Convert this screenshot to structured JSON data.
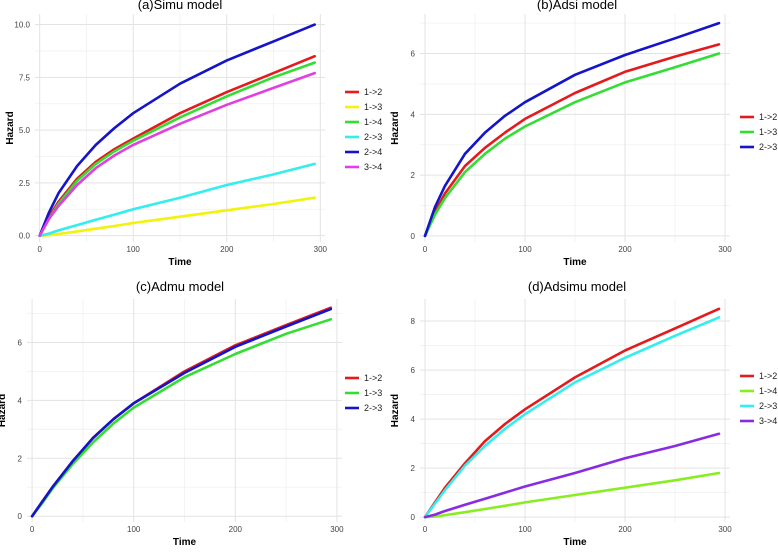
{
  "chart_data": [
    {
      "type": "line",
      "title": "(a)Simu model",
      "xlabel": "Time",
      "ylabel": "Hazard",
      "xlim": [
        -5,
        305
      ],
      "ylim": [
        -0.3,
        10.5
      ],
      "xticks": [
        0,
        100,
        200,
        300
      ],
      "yticks": [
        0.0,
        2.5,
        5.0,
        7.5,
        10.0
      ],
      "ytick_labels": [
        "0.0",
        "2.5",
        "5.0",
        "7.5",
        "10.0"
      ],
      "legend_position": "right",
      "series": [
        {
          "name": "1->2",
          "color": "#e41a1c",
          "x": [
            0,
            10,
            20,
            40,
            60,
            80,
            100,
            150,
            200,
            250,
            294
          ],
          "values": [
            0,
            0.9,
            1.6,
            2.7,
            3.5,
            4.1,
            4.6,
            5.8,
            6.8,
            7.7,
            8.5
          ]
        },
        {
          "name": "1->3",
          "color": "#f2f20a",
          "x": [
            0,
            10,
            20,
            40,
            60,
            80,
            100,
            150,
            200,
            250,
            294
          ],
          "values": [
            0,
            0.02,
            0.08,
            0.2,
            0.33,
            0.46,
            0.6,
            0.9,
            1.2,
            1.5,
            1.8
          ]
        },
        {
          "name": "1->4",
          "color": "#33dd33",
          "x": [
            0,
            10,
            20,
            40,
            60,
            80,
            100,
            150,
            200,
            250,
            294
          ],
          "values": [
            0,
            0.8,
            1.5,
            2.6,
            3.4,
            4.0,
            4.5,
            5.6,
            6.6,
            7.5,
            8.2
          ]
        },
        {
          "name": "2->3",
          "color": "#33eeee",
          "x": [
            0,
            10,
            20,
            40,
            60,
            80,
            100,
            150,
            200,
            250,
            294
          ],
          "values": [
            0,
            0.1,
            0.25,
            0.5,
            0.75,
            1.0,
            1.25,
            1.8,
            2.4,
            2.9,
            3.4
          ]
        },
        {
          "name": "2->4",
          "color": "#1414c8",
          "x": [
            0,
            10,
            20,
            40,
            60,
            80,
            100,
            150,
            200,
            250,
            294
          ],
          "values": [
            0,
            1.1,
            2.0,
            3.3,
            4.3,
            5.1,
            5.8,
            7.2,
            8.3,
            9.2,
            10.0
          ]
        },
        {
          "name": "3->4",
          "color": "#e040e0",
          "x": [
            0,
            10,
            20,
            40,
            60,
            80,
            100,
            150,
            200,
            250,
            294
          ],
          "values": [
            0,
            0.8,
            1.4,
            2.4,
            3.2,
            3.8,
            4.3,
            5.3,
            6.2,
            7.0,
            7.7
          ]
        }
      ]
    },
    {
      "type": "line",
      "title": "(b)Adsi model",
      "xlabel": "Time",
      "ylabel": "Hazard",
      "xlim": [
        -5,
        305
      ],
      "ylim": [
        -0.2,
        7.3
      ],
      "xticks": [
        0,
        100,
        200,
        300
      ],
      "yticks": [
        0,
        2,
        4,
        6
      ],
      "ytick_labels": [
        "0",
        "2",
        "4",
        "6"
      ],
      "legend_position": "right",
      "series": [
        {
          "name": "1->2",
          "color": "#e41a1c",
          "x": [
            0,
            10,
            20,
            40,
            60,
            80,
            100,
            150,
            200,
            250,
            294
          ],
          "values": [
            0,
            0.8,
            1.4,
            2.3,
            2.9,
            3.4,
            3.85,
            4.7,
            5.4,
            5.9,
            6.3
          ]
        },
        {
          "name": "1->3",
          "color": "#33dd33",
          "x": [
            0,
            10,
            20,
            40,
            60,
            80,
            100,
            150,
            200,
            250,
            294
          ],
          "values": [
            0,
            0.7,
            1.25,
            2.1,
            2.7,
            3.2,
            3.6,
            4.4,
            5.05,
            5.55,
            6.0
          ]
        },
        {
          "name": "2->3",
          "color": "#1414c8",
          "x": [
            0,
            10,
            20,
            40,
            60,
            80,
            100,
            150,
            200,
            250,
            294
          ],
          "values": [
            0,
            0.95,
            1.65,
            2.7,
            3.4,
            3.95,
            4.4,
            5.3,
            5.95,
            6.5,
            7.0
          ]
        }
      ]
    },
    {
      "type": "line",
      "title": "(c)Admu model",
      "xlabel": "Time",
      "ylabel": "Hazard",
      "xlim": [
        -5,
        305
      ],
      "ylim": [
        -0.2,
        7.5
      ],
      "xticks": [
        0,
        100,
        200,
        300
      ],
      "yticks": [
        0,
        2,
        4,
        6
      ],
      "ytick_labels": [
        "0",
        "2",
        "4",
        "6"
      ],
      "legend_position": "right",
      "series": [
        {
          "name": "1->2",
          "color": "#e41a1c",
          "x": [
            0,
            10,
            20,
            40,
            60,
            80,
            100,
            150,
            200,
            250,
            294
          ],
          "values": [
            0,
            0.5,
            1.0,
            1.9,
            2.7,
            3.35,
            3.9,
            5.0,
            5.9,
            6.6,
            7.2
          ]
        },
        {
          "name": "1->3",
          "color": "#33dd33",
          "x": [
            0,
            10,
            20,
            40,
            60,
            80,
            100,
            150,
            200,
            250,
            294
          ],
          "values": [
            0,
            0.45,
            0.95,
            1.8,
            2.55,
            3.2,
            3.75,
            4.8,
            5.6,
            6.3,
            6.8
          ]
        },
        {
          "name": "2->3",
          "color": "#1414c8",
          "x": [
            0,
            10,
            20,
            40,
            60,
            80,
            100,
            150,
            200,
            250,
            294
          ],
          "values": [
            0,
            0.5,
            1.0,
            1.9,
            2.7,
            3.35,
            3.9,
            4.95,
            5.85,
            6.55,
            7.15
          ]
        }
      ]
    },
    {
      "type": "line",
      "title": "(d)Adsimu model",
      "xlabel": "Time",
      "ylabel": "Hazard",
      "xlim": [
        -5,
        305
      ],
      "ylim": [
        -0.2,
        8.9
      ],
      "xticks": [
        0,
        100,
        200,
        300
      ],
      "yticks": [
        0,
        2,
        4,
        6,
        8
      ],
      "ytick_labels": [
        "0",
        "2",
        "4",
        "6",
        "8"
      ],
      "legend_position": "right",
      "series": [
        {
          "name": "1->2",
          "color": "#e41a1c",
          "x": [
            0,
            10,
            20,
            40,
            60,
            80,
            100,
            150,
            200,
            250,
            294
          ],
          "values": [
            0,
            0.6,
            1.2,
            2.2,
            3.1,
            3.8,
            4.4,
            5.7,
            6.8,
            7.7,
            8.5
          ]
        },
        {
          "name": "1->4",
          "color": "#88ee22",
          "x": [
            0,
            10,
            20,
            40,
            60,
            80,
            100,
            150,
            200,
            250,
            294
          ],
          "values": [
            0,
            0.02,
            0.08,
            0.2,
            0.33,
            0.46,
            0.6,
            0.9,
            1.2,
            1.5,
            1.8
          ]
        },
        {
          "name": "2->3",
          "color": "#33eeee",
          "x": [
            0,
            10,
            20,
            40,
            60,
            80,
            100,
            150,
            200,
            250,
            294
          ],
          "values": [
            0,
            0.55,
            1.1,
            2.1,
            2.9,
            3.6,
            4.2,
            5.5,
            6.5,
            7.4,
            8.15
          ]
        },
        {
          "name": "3->4",
          "color": "#8a2be2",
          "x": [
            0,
            10,
            20,
            40,
            60,
            80,
            100,
            150,
            200,
            250,
            294
          ],
          "values": [
            0,
            0.1,
            0.25,
            0.5,
            0.75,
            1.0,
            1.25,
            1.8,
            2.4,
            2.9,
            3.4
          ]
        }
      ]
    }
  ]
}
